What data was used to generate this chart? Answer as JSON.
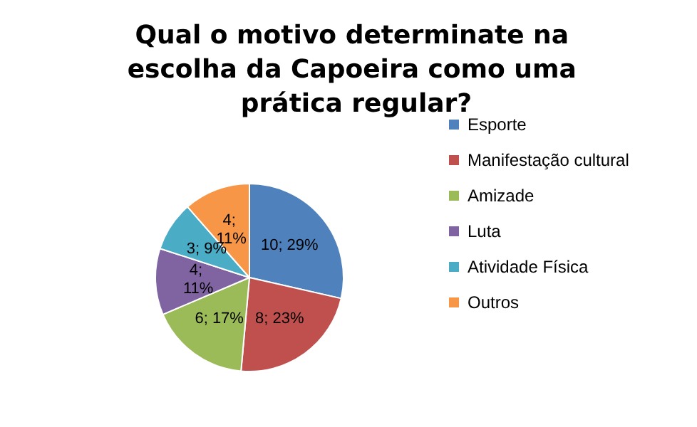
{
  "chart_data": {
    "type": "pie",
    "title": "Qual o motivo determinate na escolha da Capoeira como uma prática regular?",
    "categories": [
      "Esporte",
      "Manifestação cultural",
      "Amizade",
      "Luta",
      "Atividade Física",
      "Outros"
    ],
    "values": [
      10,
      8,
      6,
      4,
      3,
      4
    ],
    "colors": [
      "#4f81bd",
      "#c0504d",
      "#9bbb59",
      "#8064a2",
      "#4bacc6",
      "#f79646"
    ],
    "value_labels": [
      "10; 29%",
      "8; 23%",
      "6; 17%",
      "4; 11%",
      "3; 9%",
      "4; 11%"
    ],
    "legend": "right"
  }
}
